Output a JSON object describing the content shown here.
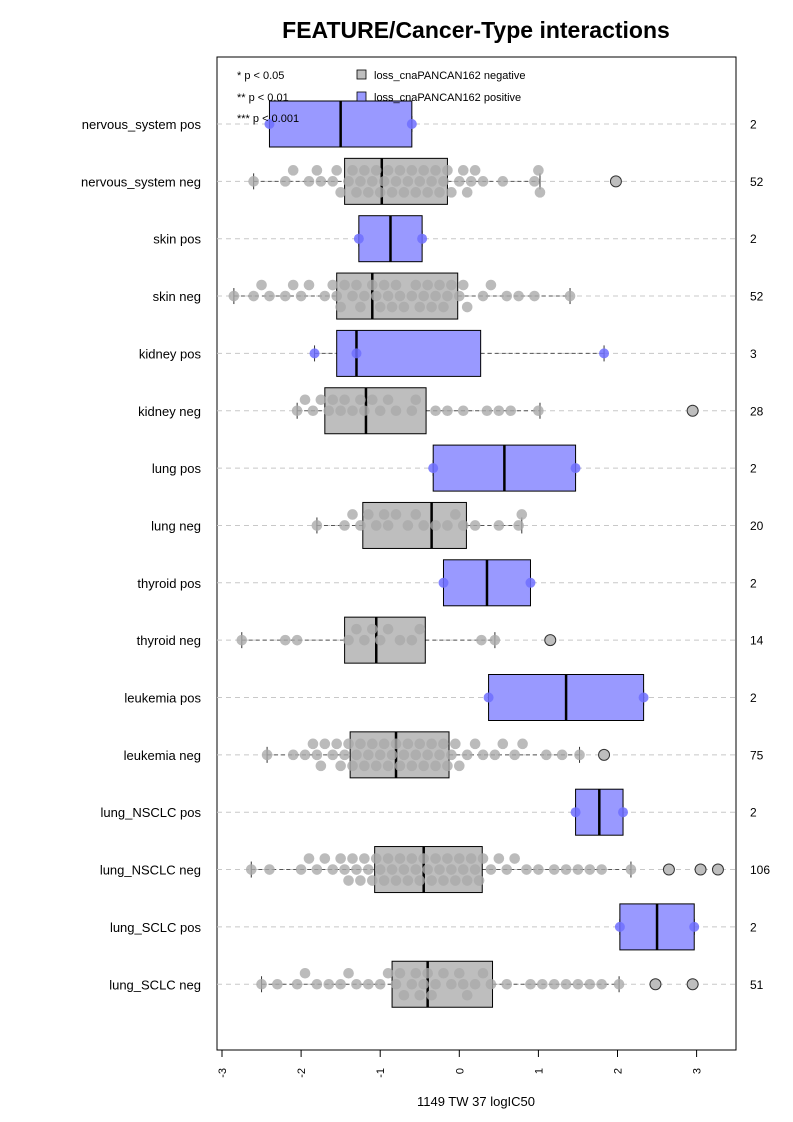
{
  "chart_data": {
    "type": "boxplot",
    "title": "FEATURE/Cancer-Type interactions",
    "xlabel": "1149 TW 37 logIC50",
    "ylabel": "",
    "xlim": [
      -3.05,
      3.55
    ],
    "x_ticks": [
      -3,
      -2,
      -1,
      0,
      1,
      2,
      3
    ],
    "x_tick_labels": [
      "-3",
      "-2",
      "-1",
      "0",
      "1",
      "2",
      "3"
    ],
    "grid": "horizontal dashed",
    "orientation": "horizontal",
    "legend": {
      "position": "top-left",
      "significance": [
        "* p < 0.05",
        "** p < 0.01",
        "*** p < 0.001"
      ],
      "entries": [
        {
          "label": "loss_cnaPANCAN162 negative",
          "color": "#BEBEBE"
        },
        {
          "label": "loss_cnaPANCAN162 positive",
          "color": "#9999FF"
        }
      ]
    },
    "colors": {
      "negative": "#BEBEBE",
      "positive": "#9999FF",
      "neg_point": "#AAAAAA",
      "pos_point": "#6F6FFF"
    },
    "groups": [
      {
        "label": "nervous_system pos",
        "n": "2",
        "group": "positive",
        "box": {
          "whisker_low": -2.4,
          "q1": -2.4,
          "median": -1.5,
          "q3": -0.6,
          "whisker_high": -0.6
        },
        "outliers": [],
        "points": [
          -2.4,
          -0.6
        ]
      },
      {
        "label": "nervous_system neg",
        "n": "52",
        "group": "negative",
        "box": {
          "whisker_low": -2.6,
          "q1": -1.45,
          "median": -0.98,
          "q3": -0.15,
          "whisker_high": 1.02
        },
        "outliers": [
          1.98
        ],
        "points": [
          -2.6,
          -2.2,
          -2.1,
          -1.9,
          -1.8,
          -1.75,
          -1.6,
          -1.55,
          -1.5,
          -1.4,
          -1.35,
          -1.3,
          -1.25,
          -1.2,
          -1.15,
          -1.1,
          -1.05,
          -1.0,
          -0.95,
          -0.9,
          -0.85,
          -0.8,
          -0.75,
          -0.7,
          -0.65,
          -0.6,
          -0.55,
          -0.5,
          -0.45,
          -0.4,
          -0.35,
          -0.3,
          -0.25,
          -0.2,
          -0.15,
          -0.1,
          0.0,
          0.05,
          0.1,
          0.15,
          0.2,
          0.3,
          0.55,
          0.95,
          1.0,
          1.02
        ]
      },
      {
        "label": "skin pos",
        "n": "2",
        "group": "positive",
        "box": {
          "whisker_low": -1.27,
          "q1": -1.27,
          "median": -0.87,
          "q3": -0.47,
          "whisker_high": -0.47
        },
        "outliers": [],
        "points": [
          -1.27,
          -0.47
        ]
      },
      {
        "label": "skin neg",
        "n": "52",
        "group": "negative",
        "box": {
          "whisker_low": -2.85,
          "q1": -1.55,
          "median": -1.1,
          "q3": -0.02,
          "whisker_high": 1.4
        },
        "outliers": [],
        "points": [
          -2.85,
          -2.6,
          -2.5,
          -2.4,
          -2.2,
          -2.1,
          -2.0,
          -1.9,
          -1.7,
          -1.6,
          -1.55,
          -1.5,
          -1.45,
          -1.35,
          -1.3,
          -1.25,
          -1.2,
          -1.1,
          -1.05,
          -1.0,
          -0.95,
          -0.9,
          -0.85,
          -0.8,
          -0.75,
          -0.7,
          -0.6,
          -0.55,
          -0.5,
          -0.45,
          -0.4,
          -0.35,
          -0.3,
          -0.25,
          -0.2,
          -0.15,
          -0.1,
          0.0,
          0.05,
          0.1,
          0.3,
          0.4,
          0.6,
          0.75,
          0.95,
          1.4
        ]
      },
      {
        "label": "kidney pos",
        "n": "3",
        "group": "positive",
        "box": {
          "whisker_low": -1.83,
          "q1": -1.55,
          "median": -1.3,
          "q3": 0.27,
          "whisker_high": 1.83
        },
        "outliers": [],
        "points": [
          -1.83,
          -1.3,
          1.83
        ]
      },
      {
        "label": "kidney neg",
        "n": "28",
        "group": "negative",
        "box": {
          "whisker_low": -2.05,
          "q1": -1.7,
          "median": -1.18,
          "q3": -0.42,
          "whisker_high": 1.02
        },
        "outliers": [
          2.95
        ],
        "points": [
          -2.05,
          -1.95,
          -1.85,
          -1.75,
          -1.65,
          -1.6,
          -1.5,
          -1.45,
          -1.35,
          -1.25,
          -1.2,
          -1.1,
          -1.0,
          -0.9,
          -0.8,
          -0.6,
          -0.55,
          -0.3,
          -0.15,
          0.05,
          0.35,
          0.5,
          0.65,
          1.0
        ]
      },
      {
        "label": "lung pos",
        "n": "2",
        "group": "positive",
        "box": {
          "whisker_low": -0.33,
          "q1": -0.33,
          "median": 0.57,
          "q3": 1.47,
          "whisker_high": 1.47
        },
        "outliers": [],
        "points": [
          -0.33,
          1.47
        ]
      },
      {
        "label": "lung neg",
        "n": "20",
        "group": "negative",
        "box": {
          "whisker_low": -1.8,
          "q1": -1.22,
          "median": -0.35,
          "q3": 0.09,
          "whisker_high": 0.79
        },
        "outliers": [],
        "points": [
          -1.8,
          -1.45,
          -1.35,
          -1.25,
          -1.15,
          -1.05,
          -0.95,
          -0.9,
          -0.8,
          -0.65,
          -0.55,
          -0.45,
          -0.3,
          -0.15,
          -0.05,
          0.05,
          0.2,
          0.5,
          0.75,
          0.79
        ]
      },
      {
        "label": "thyroid pos",
        "n": "2",
        "group": "positive",
        "box": {
          "whisker_low": -0.2,
          "q1": -0.2,
          "median": 0.35,
          "q3": 0.9,
          "whisker_high": 0.9
        },
        "outliers": [],
        "points": [
          -0.2,
          0.9
        ]
      },
      {
        "label": "thyroid neg",
        "n": "14",
        "group": "negative",
        "box": {
          "whisker_low": -2.75,
          "q1": -1.45,
          "median": -1.05,
          "q3": -0.43,
          "whisker_high": 0.45
        },
        "outliers": [
          1.15
        ],
        "points": [
          -2.75,
          -2.2,
          -2.05,
          -1.4,
          -1.3,
          -1.2,
          -1.1,
          -1.0,
          -0.9,
          -0.75,
          -0.6,
          -0.5,
          0.28,
          0.45
        ]
      },
      {
        "label": "leukemia pos",
        "n": "2",
        "group": "positive",
        "box": {
          "whisker_low": 0.37,
          "q1": 0.37,
          "median": 1.35,
          "q3": 2.33,
          "whisker_high": 2.33
        },
        "outliers": [],
        "points": [
          0.37,
          2.33
        ]
      },
      {
        "label": "leukemia neg",
        "n": "75",
        "group": "negative",
        "box": {
          "whisker_low": -2.43,
          "q1": -1.38,
          "median": -0.8,
          "q3": -0.13,
          "whisker_high": 1.52
        },
        "outliers": [
          1.83
        ],
        "points": [
          -2.43,
          -2.1,
          -1.95,
          -1.85,
          -1.8,
          -1.75,
          -1.7,
          -1.6,
          -1.55,
          -1.5,
          -1.45,
          -1.4,
          -1.35,
          -1.3,
          -1.25,
          -1.2,
          -1.15,
          -1.1,
          -1.05,
          -1.0,
          -0.95,
          -0.9,
          -0.85,
          -0.8,
          -0.75,
          -0.7,
          -0.65,
          -0.6,
          -0.55,
          -0.5,
          -0.45,
          -0.4,
          -0.35,
          -0.3,
          -0.25,
          -0.2,
          -0.15,
          -0.1,
          -0.05,
          0.0,
          0.1,
          0.2,
          0.3,
          0.45,
          0.55,
          0.7,
          0.8,
          1.1,
          1.3,
          1.52
        ]
      },
      {
        "label": "lung_NSCLC pos",
        "n": "2",
        "group": "positive",
        "box": {
          "whisker_low": 1.47,
          "q1": 1.47,
          "median": 1.77,
          "q3": 2.07,
          "whisker_high": 2.07
        },
        "outliers": [],
        "points": [
          1.47,
          2.07
        ]
      },
      {
        "label": "lung_NSCLC neg",
        "n": "106",
        "group": "negative",
        "box": {
          "whisker_low": -2.63,
          "q1": -1.07,
          "median": -0.45,
          "q3": 0.29,
          "whisker_high": 2.17
        },
        "outliers": [
          2.65,
          3.05,
          3.27
        ],
        "points": [
          -2.63,
          -2.4,
          -2.0,
          -1.9,
          -1.8,
          -1.7,
          -1.6,
          -1.5,
          -1.45,
          -1.4,
          -1.35,
          -1.3,
          -1.25,
          -1.2,
          -1.15,
          -1.1,
          -1.05,
          -1.0,
          -0.95,
          -0.9,
          -0.85,
          -0.8,
          -0.75,
          -0.7,
          -0.65,
          -0.6,
          -0.55,
          -0.5,
          -0.45,
          -0.4,
          -0.35,
          -0.3,
          -0.25,
          -0.2,
          -0.15,
          -0.1,
          -0.05,
          0.0,
          0.05,
          0.1,
          0.15,
          0.2,
          0.25,
          0.3,
          0.4,
          0.5,
          0.6,
          0.7,
          0.85,
          1.0,
          1.2,
          1.35,
          1.5,
          1.65,
          1.8,
          2.17
        ]
      },
      {
        "label": "lung_SCLC pos",
        "n": "2",
        "group": "positive",
        "box": {
          "whisker_low": 2.03,
          "q1": 2.03,
          "median": 2.5,
          "q3": 2.97,
          "whisker_high": 2.97
        },
        "outliers": [],
        "points": [
          2.03,
          2.97
        ]
      },
      {
        "label": "lung_SCLC neg",
        "n": "51",
        "group": "negative",
        "box": {
          "whisker_low": -2.5,
          "q1": -0.85,
          "median": -0.4,
          "q3": 0.42,
          "whisker_high": 2.02
        },
        "outliers": [
          2.48,
          2.95
        ],
        "points": [
          -2.5,
          -2.3,
          -2.05,
          -1.95,
          -1.8,
          -1.65,
          -1.5,
          -1.4,
          -1.3,
          -1.15,
          -1.0,
          -0.9,
          -0.8,
          -0.75,
          -0.7,
          -0.6,
          -0.55,
          -0.5,
          -0.45,
          -0.4,
          -0.35,
          -0.3,
          -0.2,
          -0.1,
          0.0,
          0.05,
          0.1,
          0.2,
          0.3,
          0.4,
          0.6,
          0.9,
          1.05,
          1.2,
          1.35,
          1.5,
          1.65,
          1.8,
          2.02
        ]
      }
    ]
  }
}
